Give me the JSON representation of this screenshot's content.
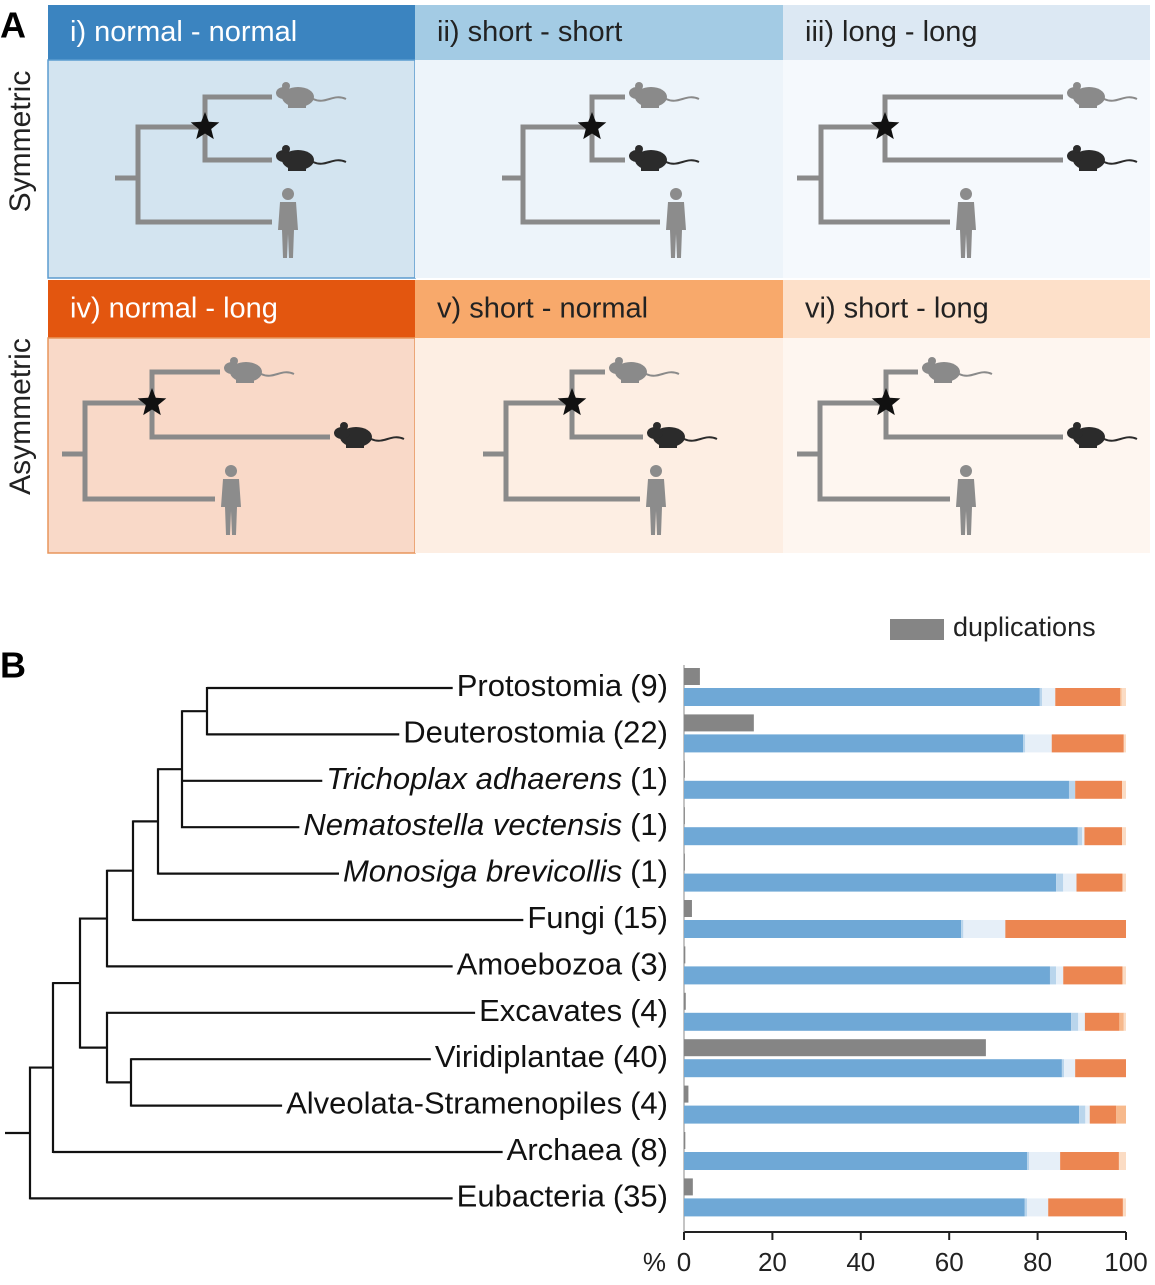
{
  "panel_a": {
    "label": "A",
    "rows": [
      {
        "label": "Symmetric",
        "cells": [
          "i) normal - normal",
          "ii) short - short",
          "iii) long - long"
        ]
      },
      {
        "label": "Asymmetric",
        "cells": [
          "iv) normal - long",
          "v) short - normal",
          "vi) short - long"
        ]
      }
    ]
  },
  "chart_data": {
    "type": "stacked-bar-h",
    "panel_label": "B",
    "categories": [
      {
        "name": "Protostomia",
        "count": "(9)",
        "italic": false
      },
      {
        "name": "Deuterostomia",
        "count": "(22)",
        "italic": false
      },
      {
        "name": "Trichoplax adhaerens",
        "count": "(1)",
        "italic": true
      },
      {
        "name": "Nematostella vectensis",
        "count": "(1)",
        "italic": true
      },
      {
        "name": "Monosiga brevicollis",
        "count": "(1)",
        "italic": true
      },
      {
        "name": "Fungi",
        "count": "(15)",
        "italic": false
      },
      {
        "name": "Amoebozoa",
        "count": "(3)",
        "italic": false
      },
      {
        "name": "Excavates",
        "count": "(4)",
        "italic": false
      },
      {
        "name": "Viridiplantae",
        "count": "(40)",
        "italic": false
      },
      {
        "name": "Alveolata-Stramenopiles",
        "count": "(4)",
        "italic": false
      },
      {
        "name": "Archaea",
        "count": "(8)",
        "italic": false
      },
      {
        "name": "Eubacteria",
        "count": "(35)",
        "italic": false
      }
    ],
    "duplications": {
      "name": "duplications",
      "color": "#858585",
      "values": [
        3.6,
        15.8,
        0.2,
        0.2,
        0.2,
        1.8,
        0.3,
        0.4,
        68.3,
        1,
        0.3,
        2
      ]
    },
    "series": [
      {
        "color": "#6fa8d6",
        "values": [
          80.5,
          76.7,
          87.1,
          89.1,
          84.2,
          62.7,
          82.8,
          87.6,
          85.5,
          89.4,
          77.6,
          77.1
        ]
      },
      {
        "color": "#b9d5ec",
        "values": [
          0.5,
          0.5,
          1.4,
          1.0,
          1.6,
          0.5,
          1.4,
          1.6,
          0.5,
          1.4,
          0.5,
          0.5
        ]
      },
      {
        "color": "#e6eff8",
        "values": [
          3,
          6,
          0,
          0.5,
          3,
          9.5,
          1.6,
          1.5,
          2.5,
          1,
          7,
          4.8
        ]
      },
      {
        "color": "#ec8651",
        "values": [
          14.7,
          16.3,
          10.6,
          8.5,
          10.4,
          27.3,
          13.4,
          7.8,
          11.5,
          6,
          13.3,
          16.9
        ]
      },
      {
        "color": "#f7b98c",
        "values": [
          0.3,
          0,
          0,
          0,
          0,
          0,
          0,
          1.0,
          0,
          2.2,
          0,
          0
        ]
      },
      {
        "color": "#fbdcc4",
        "values": [
          1,
          0.5,
          0.9,
          0.9,
          0.8,
          0,
          0.8,
          0.5,
          0,
          0,
          1.6,
          0.7
        ]
      }
    ],
    "xlim": [
      0,
      100
    ],
    "xticks": [
      0,
      20,
      40,
      60,
      80,
      100
    ],
    "xlabel": "%",
    "legend": "top-right"
  }
}
